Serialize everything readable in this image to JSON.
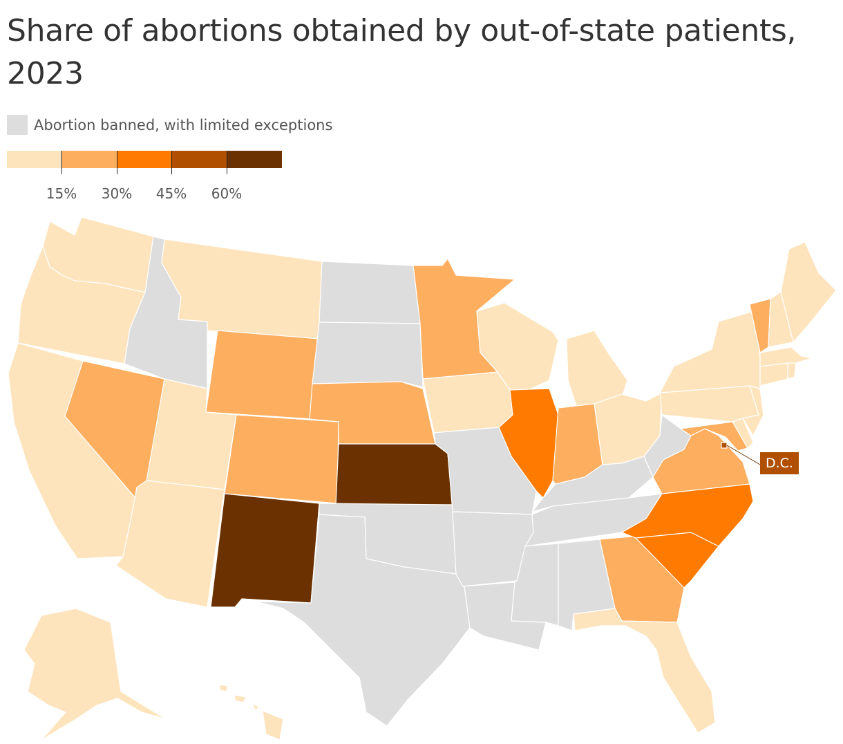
{
  "title": "Share of abortions obtained by out-of-state patients, 2023",
  "legend": {
    "banned_label": "Abortion banned, with limited exceptions",
    "banned_color": "#dddddd",
    "scale_colors": [
      "#fee4bd",
      "#feae5f",
      "#fe7a00",
      "#b04f00",
      "#6b3100"
    ],
    "scale_labels": [
      "15%",
      "30%",
      "45%",
      "60%"
    ]
  },
  "map_legend_note": "Color classes: 0 = under 15%, 1 = 15-30%, 2 = 30-45%, 3 = 45-60%, 4 = 60%+, banned = abortion banned",
  "states": [
    {
      "name": "Washington",
      "class": 0
    },
    {
      "name": "Oregon",
      "class": 0
    },
    {
      "name": "California",
      "class": 0
    },
    {
      "name": "Nevada",
      "class": 1
    },
    {
      "name": "Idaho",
      "class": "banned"
    },
    {
      "name": "Montana",
      "class": 0
    },
    {
      "name": "Wyoming",
      "class": 1
    },
    {
      "name": "Utah",
      "class": 0
    },
    {
      "name": "Arizona",
      "class": 0
    },
    {
      "name": "Colorado",
      "class": 1
    },
    {
      "name": "New Mexico",
      "class": 4
    },
    {
      "name": "North Dakota",
      "class": "banned"
    },
    {
      "name": "South Dakota",
      "class": "banned"
    },
    {
      "name": "Nebraska",
      "class": 1
    },
    {
      "name": "Kansas",
      "class": 4
    },
    {
      "name": "Oklahoma",
      "class": "banned"
    },
    {
      "name": "Texas",
      "class": "banned"
    },
    {
      "name": "Minnesota",
      "class": 1
    },
    {
      "name": "Iowa",
      "class": 0
    },
    {
      "name": "Missouri",
      "class": "banned"
    },
    {
      "name": "Arkansas",
      "class": "banned"
    },
    {
      "name": "Louisiana",
      "class": "banned"
    },
    {
      "name": "Wisconsin",
      "class": 0
    },
    {
      "name": "Illinois",
      "class": 2
    },
    {
      "name": "Michigan",
      "class": 0
    },
    {
      "name": "Indiana",
      "class": 1
    },
    {
      "name": "Ohio",
      "class": 0
    },
    {
      "name": "Kentucky",
      "class": "banned"
    },
    {
      "name": "Tennessee",
      "class": "banned"
    },
    {
      "name": "Mississippi",
      "class": "banned"
    },
    {
      "name": "Alabama",
      "class": "banned"
    },
    {
      "name": "Georgia",
      "class": 1
    },
    {
      "name": "Florida",
      "class": 0
    },
    {
      "name": "South Carolina",
      "class": 2
    },
    {
      "name": "North Carolina",
      "class": 2
    },
    {
      "name": "Virginia",
      "class": 1
    },
    {
      "name": "West Virginia",
      "class": "banned"
    },
    {
      "name": "Maryland",
      "class": 1
    },
    {
      "name": "Delaware",
      "class": 0
    },
    {
      "name": "Pennsylvania",
      "class": 0
    },
    {
      "name": "New Jersey",
      "class": 0
    },
    {
      "name": "New York",
      "class": 0
    },
    {
      "name": "Connecticut",
      "class": 0
    },
    {
      "name": "Rhode Island",
      "class": 0
    },
    {
      "name": "Massachusetts",
      "class": 0
    },
    {
      "name": "Vermont",
      "class": 1
    },
    {
      "name": "New Hampshire",
      "class": 0
    },
    {
      "name": "Maine",
      "class": 0
    },
    {
      "name": "Alaska",
      "class": 0
    },
    {
      "name": "Hawaii",
      "class": 0
    },
    {
      "name": "District of Columbia",
      "class": 3
    }
  ],
  "dc_callout": {
    "label": "D.C.",
    "class": 3
  }
}
